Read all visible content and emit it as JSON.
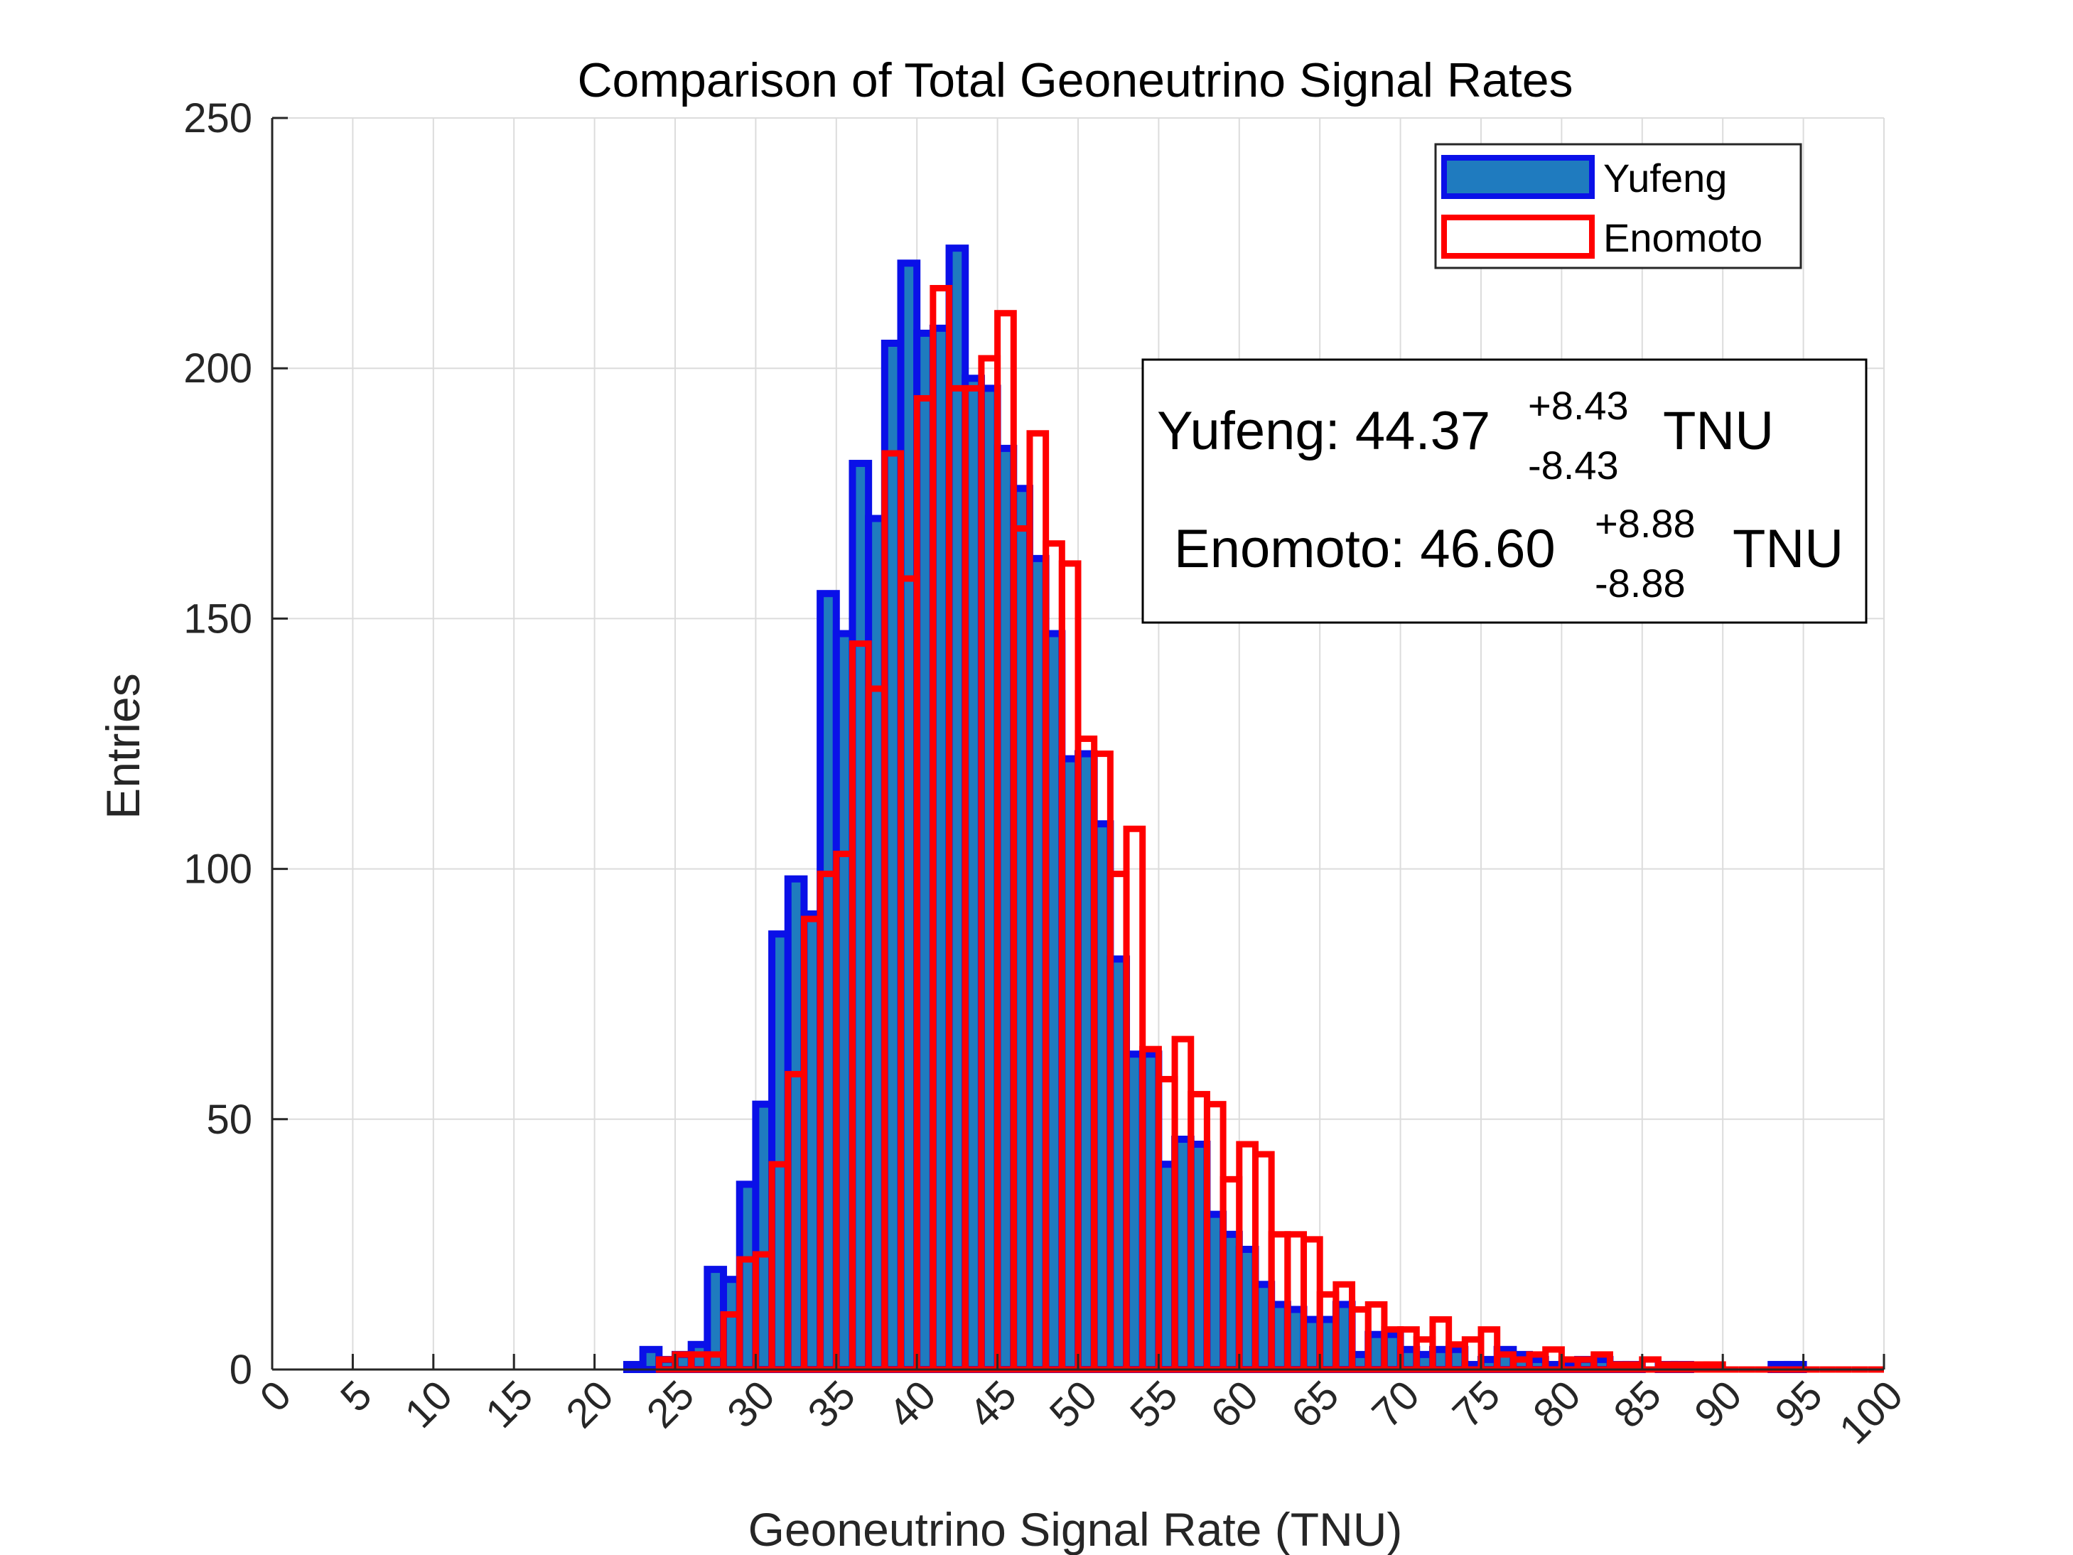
{
  "chart_data": {
    "type": "histogram",
    "title": "Comparison of Total Geoneutrino Signal Rates",
    "xlabel": "Geoneutrino Signal Rate (TNU)",
    "ylabel": "Entries",
    "xlim": [
      0,
      100
    ],
    "ylim": [
      0,
      250
    ],
    "xticks": [
      "0",
      "5",
      "10",
      "15",
      "20",
      "25",
      "30",
      "35",
      "40",
      "45",
      "50",
      "55",
      "60",
      "65",
      "70",
      "75",
      "80",
      "85",
      "90",
      "95",
      "100"
    ],
    "yticks": [
      "0",
      "50",
      "100",
      "150",
      "200",
      "250"
    ],
    "grid": true,
    "legend_position": "top-right",
    "series": [
      {
        "name": "Yufeng",
        "style": "filled",
        "fill_color": "#1f7bbf",
        "edge_color": "#0a10e8",
        "bin_width": 1,
        "bins": [
          [
            22,
            1
          ],
          [
            23,
            4
          ],
          [
            24,
            2
          ],
          [
            25,
            3
          ],
          [
            26,
            5
          ],
          [
            27,
            20
          ],
          [
            28,
            18
          ],
          [
            29,
            37
          ],
          [
            30,
            53
          ],
          [
            31,
            87
          ],
          [
            32,
            98
          ],
          [
            33,
            91
          ],
          [
            34,
            155
          ],
          [
            35,
            147
          ],
          [
            36,
            181
          ],
          [
            37,
            170
          ],
          [
            38,
            205
          ],
          [
            39,
            221
          ],
          [
            40,
            207
          ],
          [
            41,
            208
          ],
          [
            42,
            224
          ],
          [
            43,
            198
          ],
          [
            44,
            196
          ],
          [
            45,
            184
          ],
          [
            46,
            176
          ],
          [
            47,
            162
          ],
          [
            48,
            147
          ],
          [
            49,
            122
          ],
          [
            50,
            123
          ],
          [
            51,
            109
          ],
          [
            52,
            82
          ],
          [
            53,
            63
          ],
          [
            54,
            63
          ],
          [
            55,
            41
          ],
          [
            56,
            46
          ],
          [
            57,
            45
          ],
          [
            58,
            31
          ],
          [
            59,
            27
          ],
          [
            60,
            24
          ],
          [
            61,
            17
          ],
          [
            62,
            13
          ],
          [
            63,
            12
          ],
          [
            64,
            10
          ],
          [
            65,
            10
          ],
          [
            66,
            13
          ],
          [
            67,
            3
          ],
          [
            68,
            7
          ],
          [
            69,
            7
          ],
          [
            70,
            4
          ],
          [
            71,
            3
          ],
          [
            72,
            4
          ],
          [
            73,
            4
          ],
          [
            74,
            1
          ],
          [
            75,
            2
          ],
          [
            76,
            4
          ],
          [
            77,
            3
          ],
          [
            78,
            2
          ],
          [
            79,
            1
          ],
          [
            80,
            1
          ],
          [
            81,
            2
          ],
          [
            82,
            2
          ],
          [
            83,
            1
          ],
          [
            84,
            1
          ],
          [
            85,
            0
          ],
          [
            86,
            1
          ],
          [
            87,
            1
          ],
          [
            88,
            0
          ],
          [
            89,
            0
          ],
          [
            90,
            0
          ],
          [
            91,
            0
          ],
          [
            92,
            0
          ],
          [
            93,
            1
          ],
          [
            94,
            1
          ]
        ]
      },
      {
        "name": "Enomoto",
        "style": "outline",
        "edge_color": "#ff0000",
        "bin_width": 1,
        "bins": [
          [
            24,
            2
          ],
          [
            25,
            3
          ],
          [
            26,
            3
          ],
          [
            27,
            3
          ],
          [
            28,
            11
          ],
          [
            29,
            22
          ],
          [
            30,
            23
          ],
          [
            31,
            41
          ],
          [
            32,
            59
          ],
          [
            33,
            90
          ],
          [
            34,
            99
          ],
          [
            35,
            103
          ],
          [
            36,
            145
          ],
          [
            37,
            136
          ],
          [
            38,
            183
          ],
          [
            39,
            158
          ],
          [
            40,
            194
          ],
          [
            41,
            216
          ],
          [
            42,
            196
          ],
          [
            43,
            196
          ],
          [
            44,
            202
          ],
          [
            45,
            211
          ],
          [
            46,
            168
          ],
          [
            47,
            187
          ],
          [
            48,
            165
          ],
          [
            49,
            161
          ],
          [
            50,
            126
          ],
          [
            51,
            123
          ],
          [
            52,
            99
          ],
          [
            53,
            108
          ],
          [
            54,
            64
          ],
          [
            55,
            58
          ],
          [
            56,
            66
          ],
          [
            57,
            55
          ],
          [
            58,
            53
          ],
          [
            59,
            38
          ],
          [
            60,
            45
          ],
          [
            61,
            43
          ],
          [
            62,
            27
          ],
          [
            63,
            27
          ],
          [
            64,
            26
          ],
          [
            65,
            15
          ],
          [
            66,
            17
          ],
          [
            67,
            12
          ],
          [
            68,
            13
          ],
          [
            69,
            8
          ],
          [
            70,
            8
          ],
          [
            71,
            6
          ],
          [
            72,
            10
          ],
          [
            73,
            5
          ],
          [
            74,
            6
          ],
          [
            75,
            8
          ],
          [
            76,
            3
          ],
          [
            77,
            2
          ],
          [
            78,
            3
          ],
          [
            79,
            4
          ],
          [
            80,
            2
          ],
          [
            81,
            2
          ],
          [
            82,
            3
          ],
          [
            83,
            1
          ],
          [
            84,
            1
          ],
          [
            85,
            2
          ],
          [
            86,
            1
          ],
          [
            87,
            1
          ],
          [
            88,
            1
          ],
          [
            89,
            1
          ],
          [
            90,
            0
          ],
          [
            91,
            0
          ],
          [
            92,
            0
          ],
          [
            93,
            0
          ],
          [
            94,
            0
          ],
          [
            95,
            0
          ],
          [
            96,
            0
          ],
          [
            97,
            0
          ],
          [
            98,
            0
          ],
          [
            99,
            0
          ]
        ]
      }
    ],
    "annotation": {
      "yufeng": {
        "label": "Yufeng: 44.37",
        "sup": "+8.43",
        "sub": "-8.43",
        "unit": "TNU"
      },
      "enomoto": {
        "label": "Enomoto: 46.60",
        "sup": "+8.88",
        "sub": "-8.88",
        "unit": "TNU"
      }
    }
  }
}
